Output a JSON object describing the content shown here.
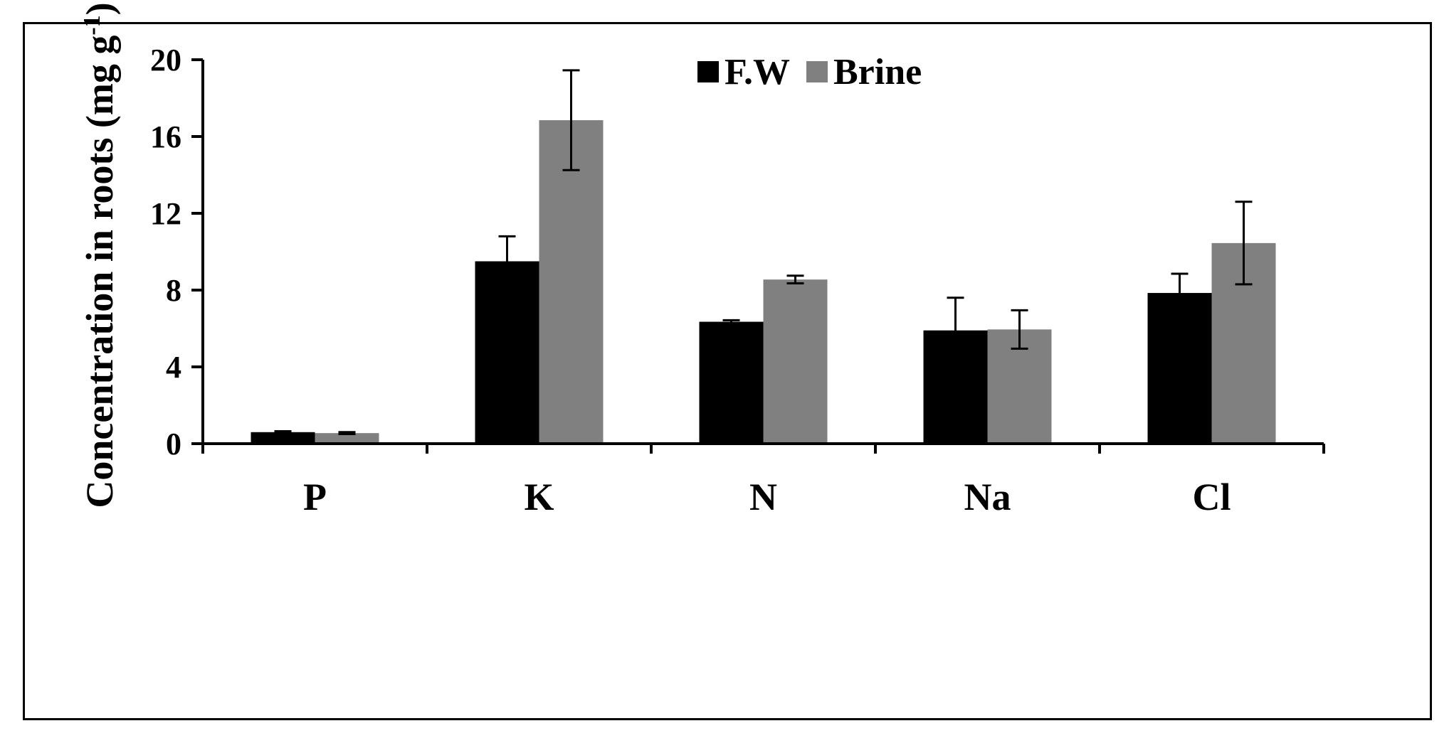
{
  "chart_data": {
    "type": "bar",
    "categories": [
      "P",
      "K",
      "N",
      "Na",
      "Cl"
    ],
    "series": [
      {
        "name": "F.W",
        "color": "#000000",
        "values": [
          0.6,
          9.5,
          6.35,
          5.9,
          7.85
        ],
        "errors": [
          0.05,
          1.3,
          0.08,
          1.7,
          1.0
        ]
      },
      {
        "name": "Brine",
        "color": "#808080",
        "values": [
          0.55,
          16.85,
          8.55,
          5.95,
          10.45
        ],
        "errors": [
          0.05,
          2.6,
          0.2,
          1.0,
          2.15
        ]
      }
    ],
    "title": "",
    "xlabel": "",
    "ylabel": "Concentration in roots (mg g",
    "ylabel_superscript": "-1",
    "ylabel_close": ")",
    "ylim": [
      0,
      20
    ],
    "yticks": [
      0,
      4,
      8,
      12,
      16,
      20
    ],
    "grid": false,
    "legend_position": "top-center"
  }
}
